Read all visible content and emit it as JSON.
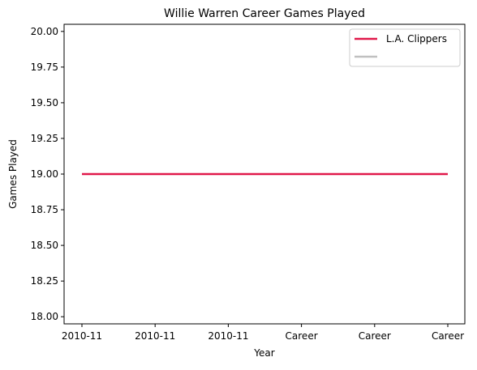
{
  "chart_data": {
    "type": "line",
    "title": "Willie Warren Career Games Played",
    "xlabel": "Year",
    "ylabel": "Games Played",
    "categories": [
      "2010-11",
      "2010-11",
      "2010-11",
      "Career",
      "Career",
      "Career"
    ],
    "ylim": [
      17.95,
      20.05
    ],
    "yticks": [
      18.0,
      18.25,
      18.5,
      18.75,
      19.0,
      19.25,
      19.5,
      19.75,
      20.0
    ],
    "ytick_labels": [
      "18.00",
      "18.25",
      "18.50",
      "18.75",
      "19.00",
      "19.25",
      "19.50",
      "19.75",
      "20.00"
    ],
    "grid": false,
    "legend_position": "top-right",
    "series": [
      {
        "name": "L.A. Clippers",
        "color": "#e0194a",
        "values": [
          19,
          19,
          19,
          19,
          19,
          19
        ]
      }
    ],
    "legend": [
      {
        "label": "L.A. Clippers",
        "color": "#e0194a"
      },
      {
        "label": "",
        "color": "#c0c0c0"
      }
    ]
  }
}
